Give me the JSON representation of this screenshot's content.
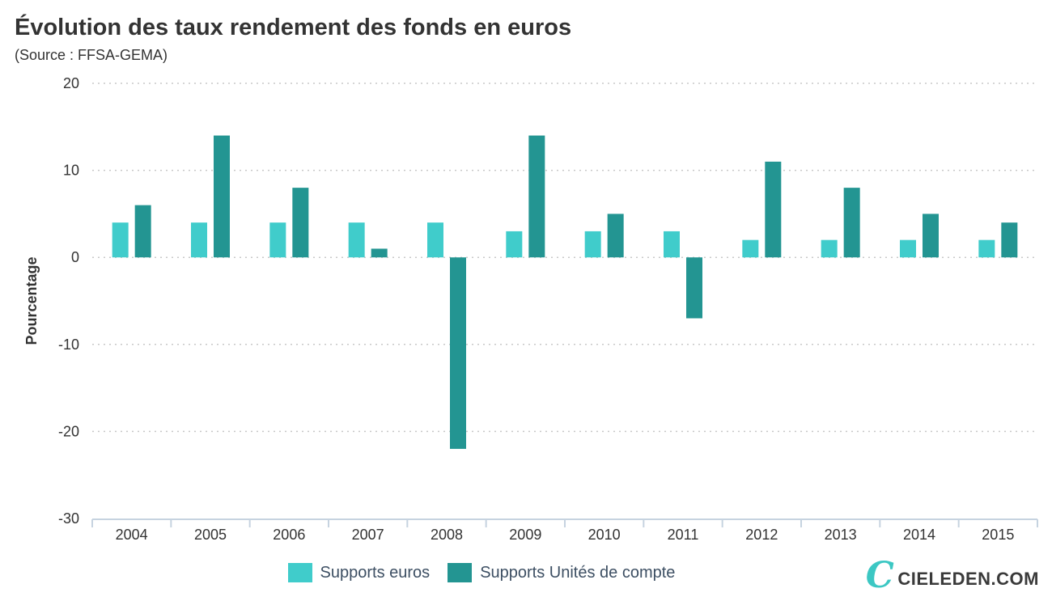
{
  "header": {
    "title": "Évolution des taux rendement des fonds en euros",
    "subtitle": "(Source : FFSA-GEMA)"
  },
  "logo": {
    "mark": "C",
    "text": "CIELEDEN.COM"
  },
  "chart_data": {
    "type": "bar",
    "categories": [
      "2004",
      "2005",
      "2006",
      "2007",
      "2008",
      "2009",
      "2010",
      "2011",
      "2012",
      "2013",
      "2014",
      "2015"
    ],
    "series": [
      {
        "name": "Supports euros",
        "color": "#40cccb",
        "values": [
          4,
          4,
          4,
          4,
          4,
          3,
          3,
          3,
          2,
          2,
          2,
          2
        ]
      },
      {
        "name": "Supports Unités de compte",
        "color": "#239592",
        "values": [
          6,
          14,
          8,
          1,
          -22,
          14,
          5,
          -7,
          11,
          8,
          5,
          4
        ]
      }
    ],
    "xlabel": "",
    "ylabel": "Pourcentage",
    "ylim": [
      -30,
      20
    ],
    "yticks": [
      20,
      10,
      0,
      -10,
      -20,
      -30
    ],
    "grid": true,
    "legend": "bottom"
  }
}
